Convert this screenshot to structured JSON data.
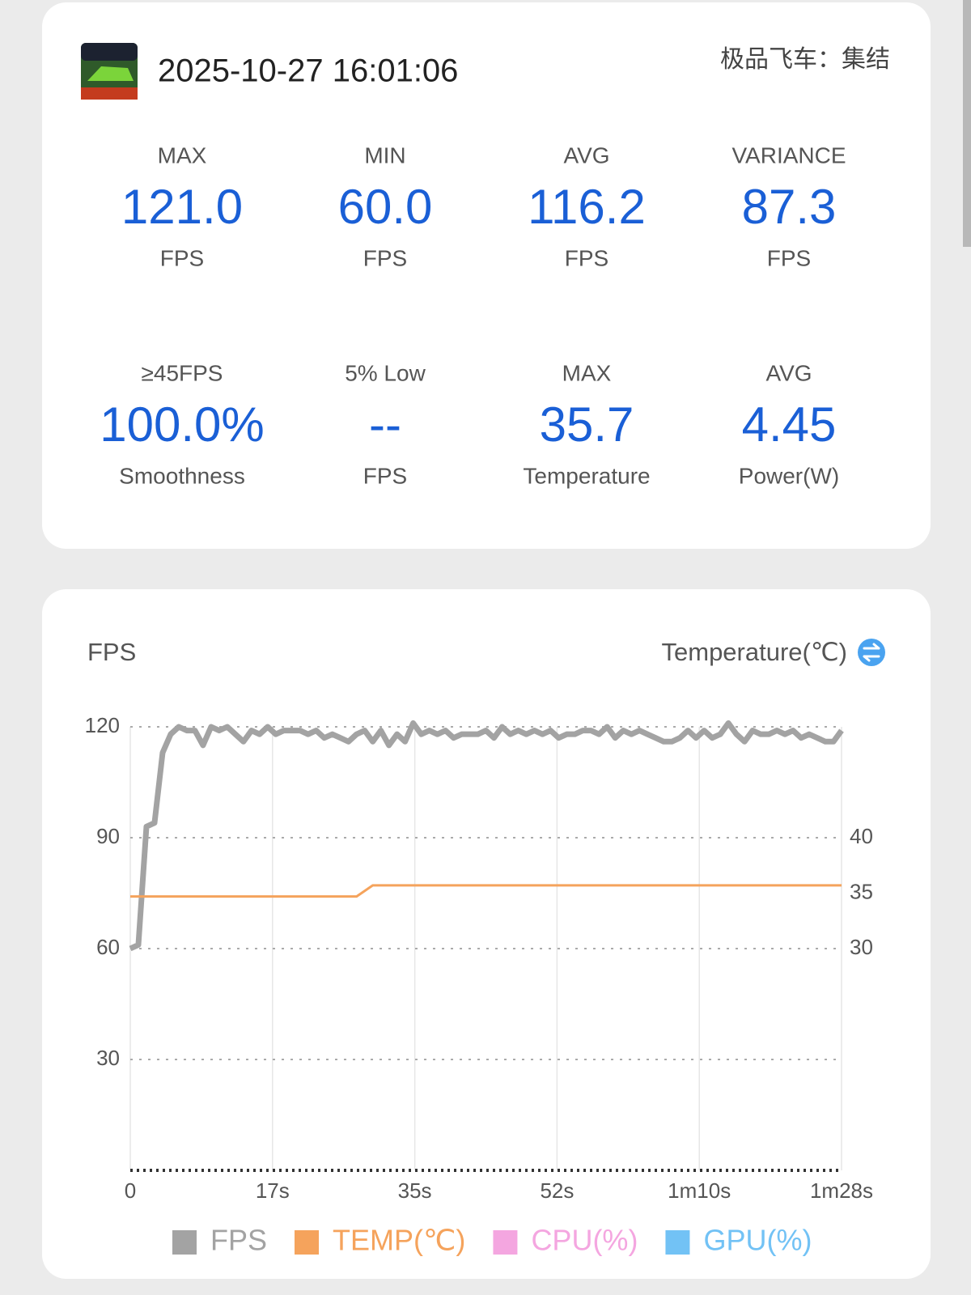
{
  "header": {
    "datetime": "2025-10-27 16:01:06",
    "game": "极品飞车：集结"
  },
  "stats": [
    {
      "label": "MAX",
      "value": "121.0",
      "unit": "FPS"
    },
    {
      "label": "MIN",
      "value": "60.0",
      "unit": "FPS"
    },
    {
      "label": "AVG",
      "value": "116.2",
      "unit": "FPS"
    },
    {
      "label": "VARIANCE",
      "value": "87.3",
      "unit": "FPS"
    },
    {
      "label": "≥45FPS",
      "value": "100.0%",
      "unit": "Smoothness"
    },
    {
      "label": "5% Low",
      "value": "--",
      "unit": "FPS"
    },
    {
      "label": "MAX",
      "value": "35.7",
      "unit": "Temperature"
    },
    {
      "label": "AVG",
      "value": "4.45",
      "unit": "Power(W)"
    }
  ],
  "chart_data": {
    "type": "line",
    "y_label": "FPS",
    "y2_label": "Temperature(℃)",
    "x": [
      0,
      1,
      2,
      3,
      4,
      5,
      6,
      7,
      8,
      9,
      10,
      11,
      12,
      13,
      14,
      15,
      16,
      17,
      18,
      19,
      20,
      21,
      22,
      23,
      24,
      25,
      26,
      27,
      28,
      29,
      30,
      31,
      32,
      33,
      34,
      35,
      36,
      37,
      38,
      39,
      40,
      41,
      42,
      43,
      44,
      45,
      46,
      47,
      48,
      49,
      50,
      51,
      52,
      53,
      54,
      55,
      56,
      57,
      58,
      59,
      60,
      61,
      62,
      63,
      64,
      65,
      66,
      67,
      68,
      69,
      70,
      71,
      72,
      73,
      74,
      75,
      76,
      77,
      78,
      79,
      80,
      81,
      82,
      83,
      84,
      85,
      86,
      87,
      88
    ],
    "series": [
      {
        "name": "FPS",
        "color": "#a3a3a3",
        "values": [
          60,
          61,
          93,
          94,
          113,
          118,
          120,
          119,
          119,
          115,
          120,
          119,
          120,
          118,
          116,
          119,
          118,
          120,
          118,
          119,
          119,
          119,
          118,
          119,
          117,
          118,
          117,
          116,
          118,
          119,
          116,
          119,
          115,
          118,
          116,
          121,
          118,
          119,
          118,
          119,
          117,
          118,
          118,
          118,
          119,
          117,
          120,
          118,
          119,
          118,
          119,
          118,
          119,
          117,
          118,
          118,
          119,
          119,
          118,
          120,
          117,
          119,
          118,
          119,
          118,
          117,
          116,
          116,
          117,
          119,
          117,
          119,
          117,
          118,
          121,
          118,
          116,
          119,
          118,
          118,
          119,
          118,
          119,
          117,
          118,
          117,
          116,
          116,
          119
        ]
      },
      {
        "name": "TEMP(℃)",
        "color": "#f5a35c",
        "axis": "y2",
        "values": [
          34.7,
          34.7,
          34.7,
          34.7,
          34.7,
          34.7,
          34.7,
          34.7,
          34.7,
          34.7,
          34.7,
          34.7,
          34.7,
          34.7,
          34.7,
          34.7,
          34.7,
          34.7,
          34.7,
          34.7,
          34.7,
          34.7,
          34.7,
          34.7,
          34.7,
          34.7,
          34.7,
          34.7,
          34.7,
          35.2,
          35.7,
          35.7,
          35.7,
          35.7,
          35.7,
          35.7,
          35.7,
          35.7,
          35.7,
          35.7,
          35.7,
          35.7,
          35.7,
          35.7,
          35.7,
          35.7,
          35.7,
          35.7,
          35.7,
          35.7,
          35.7,
          35.7,
          35.7,
          35.7,
          35.7,
          35.7,
          35.7,
          35.7,
          35.7,
          35.7,
          35.7,
          35.7,
          35.7,
          35.7,
          35.7,
          35.7,
          35.7,
          35.7,
          35.7,
          35.7,
          35.7,
          35.7,
          35.7,
          35.7,
          35.7,
          35.7,
          35.7,
          35.7,
          35.7,
          35.7,
          35.7,
          35.7,
          35.7,
          35.7,
          35.7,
          35.7,
          35.7,
          35.7,
          35.7
        ]
      }
    ],
    "hidden_series": [
      {
        "name": "CPU(%)",
        "color": "#f4a6e0"
      },
      {
        "name": "GPU(%)",
        "color": "#72c2f5"
      }
    ],
    "xlim": [
      0,
      88
    ],
    "xticks": [
      0,
      {
        "value": 17.6,
        "label": "17s"
      },
      {
        "value": 35.2,
        "label": "35s"
      },
      {
        "value": 52.8,
        "label": "52s"
      },
      {
        "value": 70.4,
        "label": "1m10s"
      },
      {
        "value": 88,
        "label": "1m28s"
      }
    ],
    "ylim": [
      0,
      120
    ],
    "yticks": [
      30,
      60,
      90,
      120
    ],
    "y2lim": [
      10,
      50
    ],
    "y2ticks": [
      30,
      35,
      40
    ],
    "grid": true
  }
}
